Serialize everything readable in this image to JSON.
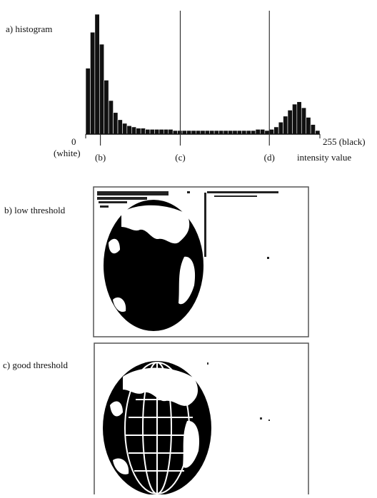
{
  "chart_data": {
    "type": "histogram",
    "title": "a) histogram",
    "x_label": "intensity value",
    "xmin_note": "(white)",
    "xlim": [
      0,
      255
    ],
    "xticks": [
      0,
      {
        "value": 255,
        "label": "255 (black)"
      }
    ],
    "ylim": [
      0,
      100
    ],
    "color": "#111111",
    "bins": [
      0,
      5,
      10,
      15,
      20,
      25,
      30,
      35,
      40,
      45,
      50,
      55,
      60,
      65,
      70,
      75,
      80,
      85,
      90,
      95,
      100,
      105,
      110,
      115,
      120,
      125,
      130,
      135,
      140,
      145,
      150,
      155,
      160,
      165,
      170,
      175,
      180,
      185,
      190,
      195,
      200,
      205,
      210,
      215,
      220,
      225,
      230,
      235,
      240,
      245,
      250,
      255
    ],
    "counts": [
      55,
      85,
      100,
      75,
      45,
      28,
      18,
      12,
      9,
      7,
      6,
      5,
      5,
      4,
      4,
      4,
      4,
      4,
      4,
      3,
      3,
      3,
      3,
      3,
      3,
      3,
      3,
      3,
      3,
      3,
      3,
      3,
      3,
      3,
      3,
      3,
      3,
      4,
      4,
      3,
      4,
      6,
      10,
      15,
      20,
      25,
      27,
      22,
      14,
      8,
      3
    ],
    "thresholds": [
      {
        "label": "(b)",
        "value": 16,
        "full_height": false
      },
      {
        "label": "(c)",
        "value": 103,
        "full_height": true
      },
      {
        "label": "(d)",
        "value": 200,
        "full_height": true
      }
    ]
  },
  "panels": [
    {
      "label": "b) low threshold"
    },
    {
      "label": "c) good threshold"
    }
  ]
}
